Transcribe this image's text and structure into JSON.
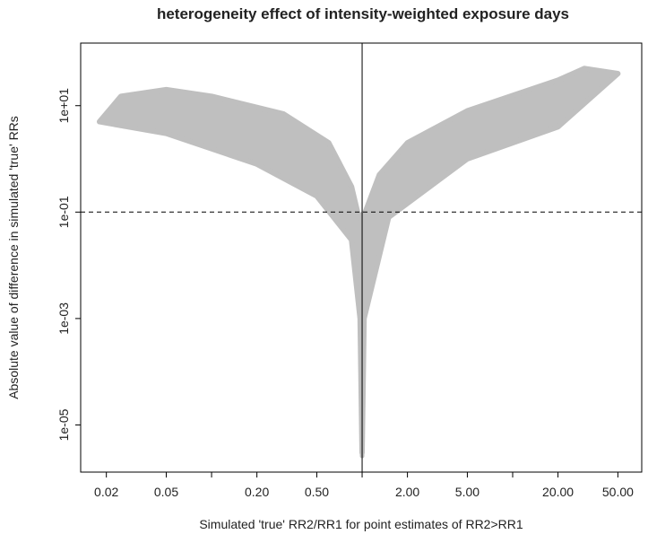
{
  "chart_data": {
    "type": "scatter",
    "title": "heterogeneity effect of intensity-weighted exposure days",
    "xlabel": "Simulated 'true' RR2/RR1 for point estimates of RR2>RR1",
    "ylabel": "Absolute value of difference in simulated 'true' RRs",
    "x_scale": "log",
    "y_scale": "log",
    "xlim": [
      0.0135,
      72
    ],
    "ylim": [
      1.3e-06,
      150
    ],
    "x_ticks": [
      {
        "value": 0.02,
        "label": "0.02"
      },
      {
        "value": 0.05,
        "label": "0.05"
      },
      {
        "value": 0.2,
        "label": "0.20"
      },
      {
        "value": 0.5,
        "label": "0.50"
      },
      {
        "value": 2,
        "label": "2.00"
      },
      {
        "value": 5,
        "label": "5.00"
      },
      {
        "value": 20,
        "label": "20.00"
      },
      {
        "value": 50,
        "label": "50.00"
      }
    ],
    "x_minor_ticks": [
      0.1,
      1,
      10
    ],
    "y_ticks": [
      {
        "value": 10,
        "label": "1e+01"
      },
      {
        "value": 0.1,
        "label": "1e-01"
      },
      {
        "value": 0.001,
        "label": "1e-03"
      },
      {
        "value": 1e-05,
        "label": "1e-05"
      }
    ],
    "reference_lines": {
      "vertical_solid_x": 1,
      "horizontal_dashed_y": 0.1
    },
    "marker_color": "#bfbfbf",
    "point_envelope_upper": [
      {
        "x": 0.018,
        "y": 5
      },
      {
        "x": 0.025,
        "y": 15
      },
      {
        "x": 0.05,
        "y": 20
      },
      {
        "x": 0.1,
        "y": 15
      },
      {
        "x": 0.3,
        "y": 7
      },
      {
        "x": 0.6,
        "y": 2
      },
      {
        "x": 0.85,
        "y": 0.3
      },
      {
        "x": 0.95,
        "y": 0.08
      },
      {
        "x": 1.05,
        "y": 0.1
      },
      {
        "x": 1.3,
        "y": 0.5
      },
      {
        "x": 2,
        "y": 2
      },
      {
        "x": 5,
        "y": 8
      },
      {
        "x": 20,
        "y": 30
      },
      {
        "x": 30,
        "y": 50
      },
      {
        "x": 50,
        "y": 40
      }
    ],
    "point_envelope_lower": [
      {
        "x": 0.05,
        "y": 3
      },
      {
        "x": 0.2,
        "y": 0.8
      },
      {
        "x": 0.5,
        "y": 0.2
      },
      {
        "x": 0.85,
        "y": 0.03
      },
      {
        "x": 0.97,
        "y": 0.001
      },
      {
        "x": 1.0,
        "y": 3e-06
      },
      {
        "x": 1.03,
        "y": 0.001
      },
      {
        "x": 1.5,
        "y": 0.08
      },
      {
        "x": 5,
        "y": 1
      },
      {
        "x": 20,
        "y": 4
      }
    ],
    "grid": false,
    "legend": "none"
  }
}
